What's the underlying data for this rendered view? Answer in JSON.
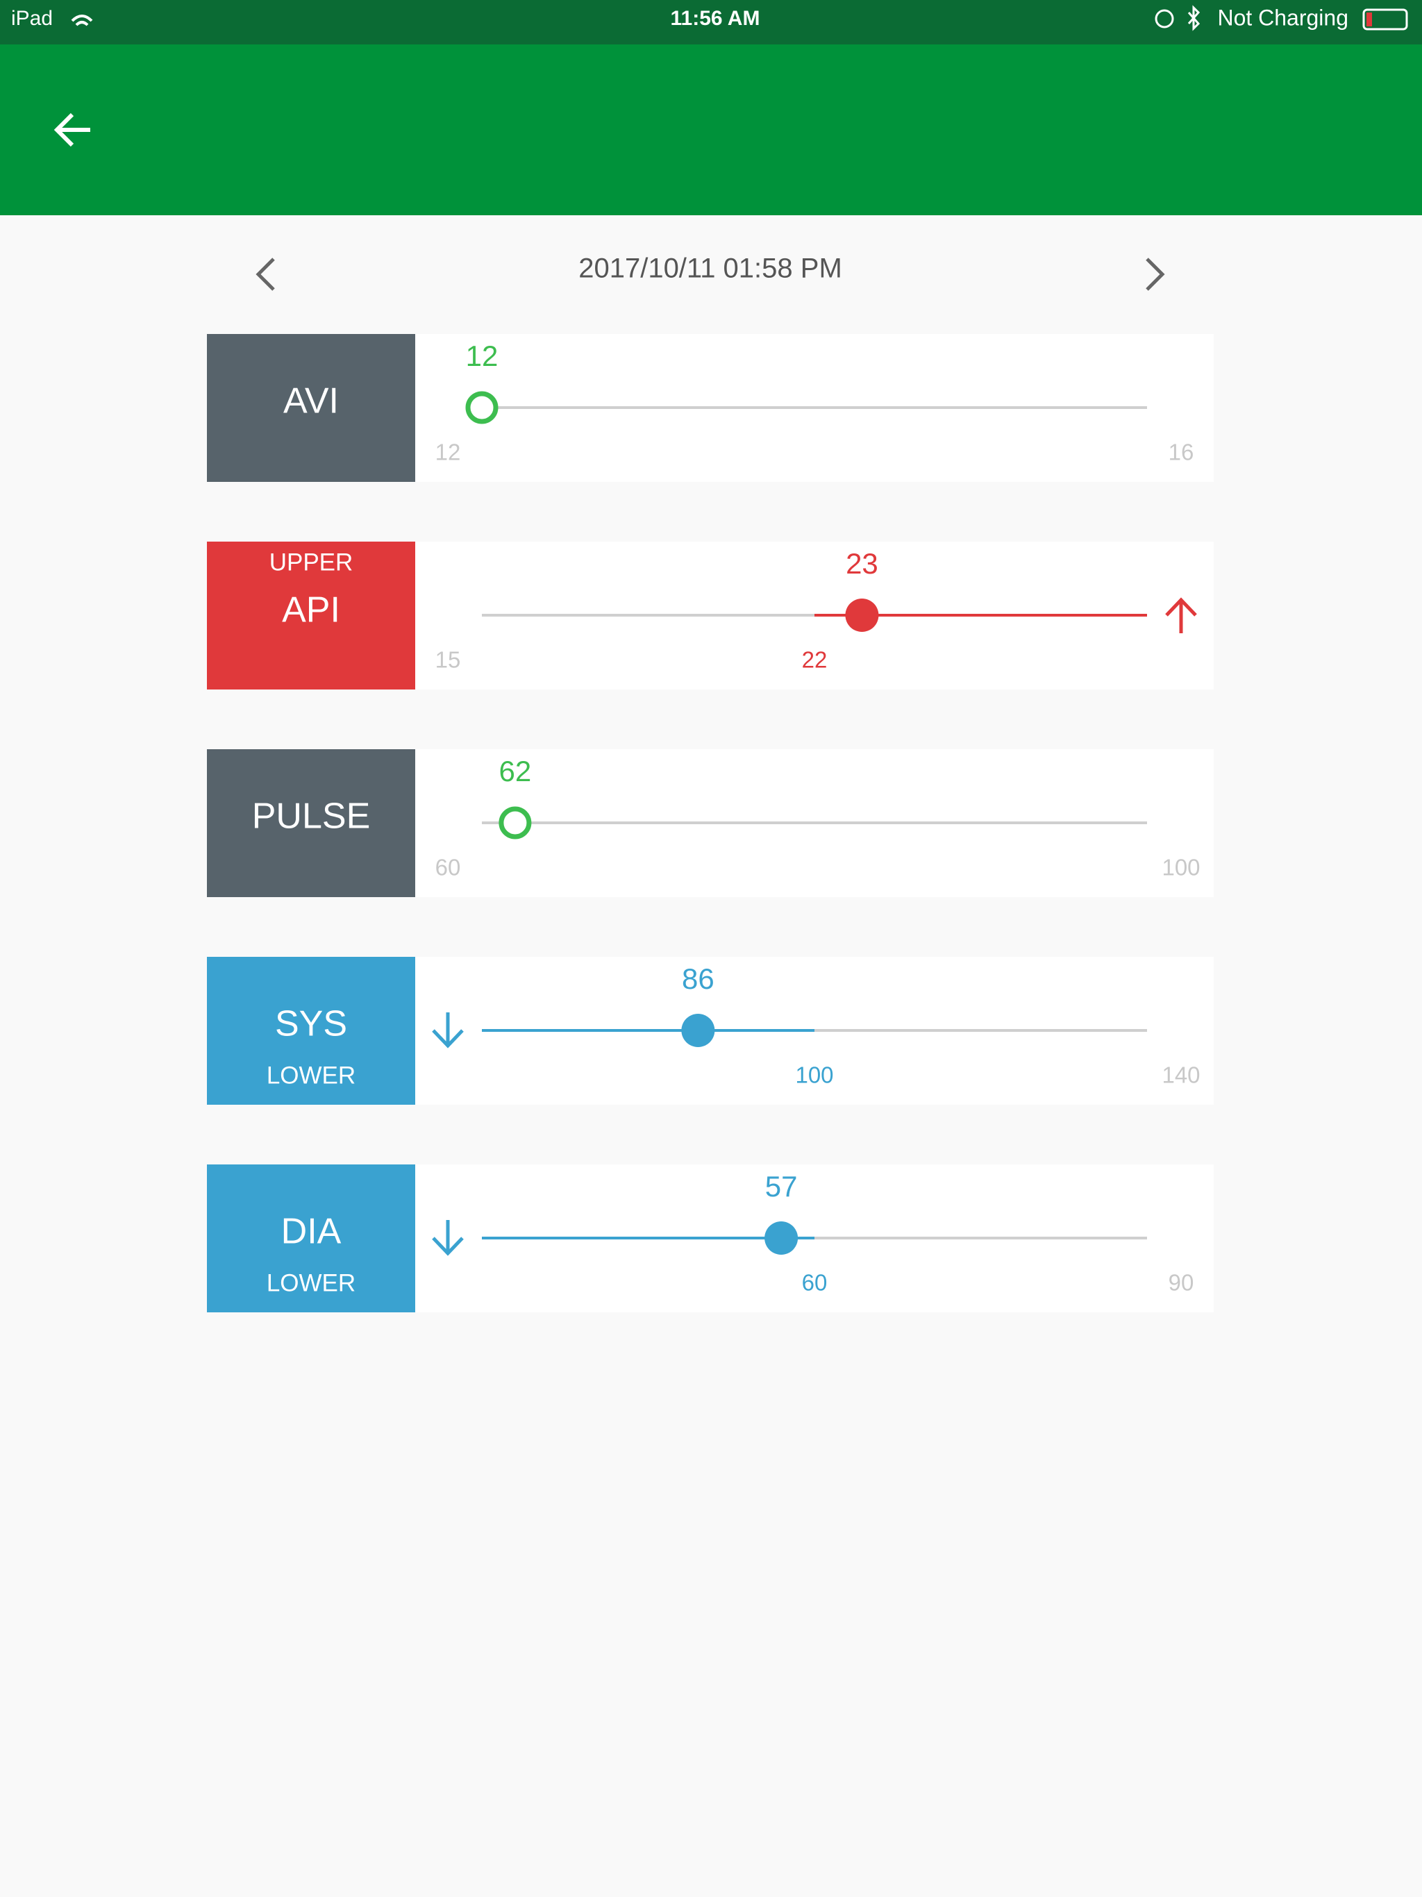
{
  "status_bar": {
    "device": "iPad",
    "time": "11:56 AM",
    "battery": "Not Charging"
  },
  "date_nav": {
    "date": "2017/10/11 01:58 PM"
  },
  "metrics": [
    {
      "label": "AVI",
      "value": 12,
      "min": 12,
      "max": 16,
      "color": "#3dbd4f",
      "label_color": "#57636b"
    },
    {
      "label": "API",
      "tag": "UPPER",
      "value": 23,
      "min": 15,
      "threshold": 22,
      "color": "#e0393b",
      "label_color": "#e0393b"
    },
    {
      "label": "PULSE",
      "value": 62,
      "min": 60,
      "max": 100,
      "color": "#3dbd4f",
      "label_color": "#57636b"
    },
    {
      "label": "SYS",
      "tag": "LOWER",
      "value": 86,
      "threshold": 100,
      "max": 140,
      "color": "#3aa2d0",
      "label_color": "#3aa2d0"
    },
    {
      "label": "DIA",
      "tag": "LOWER",
      "value": 57,
      "threshold": 60,
      "max": 90,
      "color": "#3aa2d0",
      "label_color": "#3aa2d0"
    }
  ]
}
